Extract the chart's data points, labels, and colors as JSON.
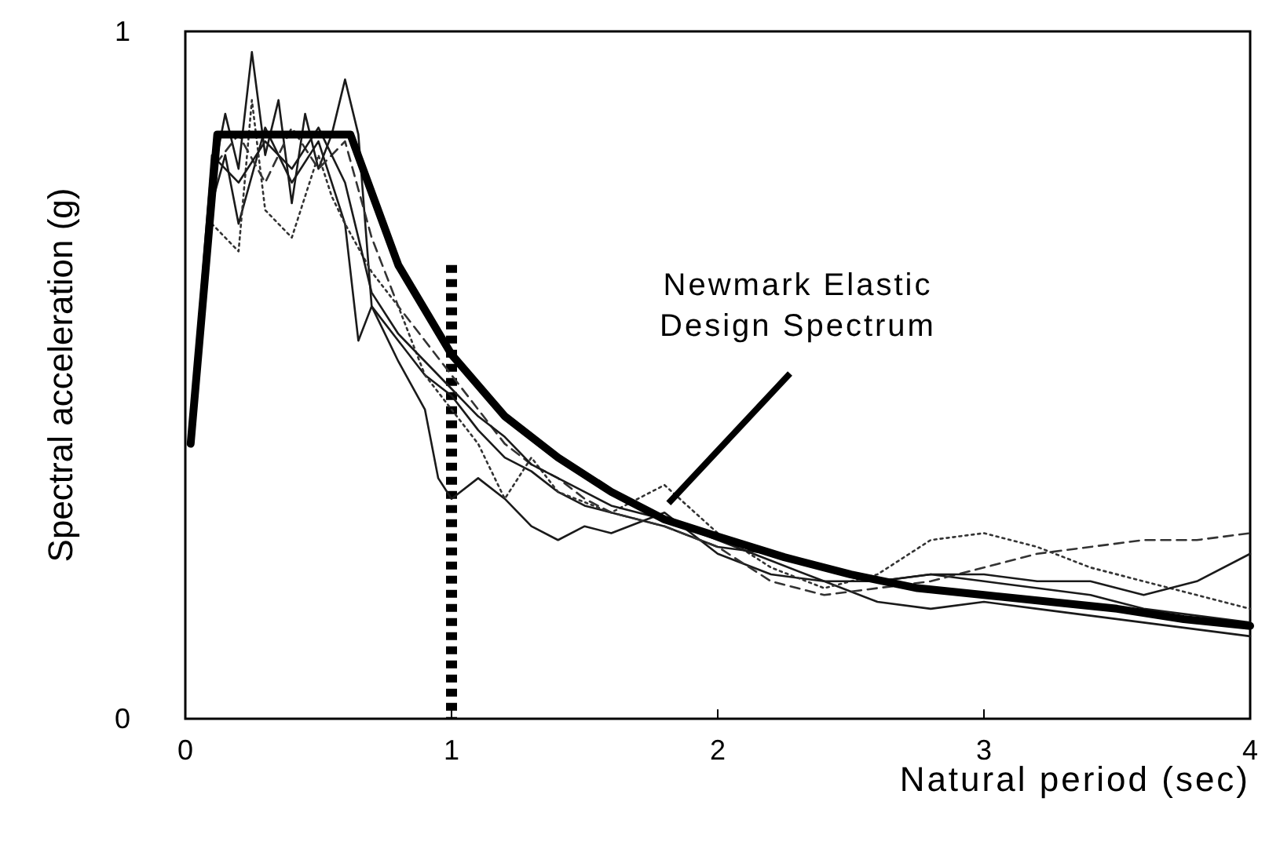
{
  "chart_data": {
    "type": "line",
    "xlabel": "Natural period (sec)",
    "ylabel": "Spectral acceleration (g)",
    "xlim": [
      0,
      4
    ],
    "ylim": [
      0,
      1
    ],
    "xticks": [
      0,
      1,
      2,
      3,
      4
    ],
    "yticks": [
      0,
      1
    ],
    "grid": false,
    "marker": "none",
    "x": [
      0.02,
      0.1,
      0.2,
      0.3,
      0.4,
      0.5,
      0.6,
      0.7,
      0.8,
      0.9,
      1.0,
      1.1,
      1.2,
      1.3,
      1.4,
      1.5,
      1.6,
      1.8,
      2.0,
      2.2,
      2.4,
      2.6,
      2.8,
      3.0,
      3.2,
      3.4,
      3.6,
      3.8,
      4.0
    ],
    "series": [
      {
        "color": "#1a1a1a",
        "line_style": "solid",
        "x": [
          0.02,
          0.06,
          0.1,
          0.15,
          0.2,
          0.25,
          0.3,
          0.35,
          0.4,
          0.45,
          0.5,
          0.55,
          0.6,
          0.65,
          0.7,
          0.8,
          0.9,
          1.0,
          1.1,
          1.2,
          1.3,
          1.4,
          1.5,
          1.6,
          1.8,
          2.0,
          2.2,
          2.4,
          2.6,
          2.8,
          3.0,
          3.2,
          3.4,
          3.6,
          3.8,
          4.0
        ],
        "values": [
          0.42,
          0.6,
          0.78,
          0.88,
          0.8,
          0.97,
          0.82,
          0.9,
          0.75,
          0.88,
          0.8,
          0.85,
          0.93,
          0.85,
          0.6,
          0.55,
          0.5,
          0.47,
          0.42,
          0.38,
          0.36,
          0.33,
          0.31,
          0.3,
          0.28,
          0.25,
          0.24,
          0.22,
          0.2,
          0.21,
          0.2,
          0.19,
          0.18,
          0.16,
          0.15,
          0.14
        ]
      },
      {
        "color": "#1a1a1a",
        "line_style": "solid",
        "x": [
          0.02,
          0.1,
          0.15,
          0.2,
          0.3,
          0.4,
          0.5,
          0.6,
          0.65,
          0.7,
          0.8,
          0.9,
          0.95,
          1.0,
          1.1,
          1.2,
          1.3,
          1.4,
          1.5,
          1.6,
          1.8,
          2.0,
          2.2,
          2.4,
          2.6,
          2.8,
          3.0,
          3.2,
          3.4,
          3.6,
          3.8,
          4.0
        ],
        "values": [
          0.4,
          0.75,
          0.82,
          0.72,
          0.86,
          0.78,
          0.84,
          0.72,
          0.55,
          0.6,
          0.52,
          0.45,
          0.35,
          0.32,
          0.35,
          0.32,
          0.28,
          0.26,
          0.28,
          0.27,
          0.3,
          0.24,
          0.21,
          0.2,
          0.17,
          0.16,
          0.17,
          0.16,
          0.15,
          0.14,
          0.13,
          0.12
        ]
      },
      {
        "color": "#333333",
        "line_style": "dotted",
        "x": [
          0.02,
          0.1,
          0.2,
          0.25,
          0.3,
          0.4,
          0.5,
          0.55,
          0.6,
          0.7,
          0.8,
          0.9,
          1.0,
          1.1,
          1.2,
          1.3,
          1.4,
          1.6,
          1.8,
          2.0,
          2.2,
          2.4,
          2.6,
          2.8,
          3.0,
          3.2,
          3.4,
          3.6,
          3.8,
          4.0
        ],
        "values": [
          0.42,
          0.72,
          0.68,
          0.9,
          0.74,
          0.7,
          0.82,
          0.76,
          0.72,
          0.65,
          0.6,
          0.5,
          0.45,
          0.4,
          0.32,
          0.38,
          0.33,
          0.3,
          0.34,
          0.27,
          0.22,
          0.19,
          0.21,
          0.26,
          0.27,
          0.25,
          0.22,
          0.2,
          0.18,
          0.16
        ]
      },
      {
        "color": "#333333",
        "line_style": "dashed",
        "values": [
          0.4,
          0.8,
          0.85,
          0.78,
          0.86,
          0.8,
          0.84,
          0.7,
          0.6,
          0.55,
          0.5,
          0.45,
          0.4,
          0.37,
          0.35,
          0.32,
          0.3,
          0.28,
          0.25,
          0.2,
          0.18,
          0.19,
          0.2,
          0.22,
          0.24,
          0.25,
          0.26,
          0.26,
          0.27
        ]
      },
      {
        "color": "#1a1a1a",
        "line_style": "solid",
        "values": [
          0.42,
          0.82,
          0.78,
          0.84,
          0.8,
          0.86,
          0.78,
          0.62,
          0.56,
          0.52,
          0.48,
          0.44,
          0.41,
          0.37,
          0.35,
          0.33,
          0.31,
          0.29,
          0.26,
          0.23,
          0.2,
          0.2,
          0.21,
          0.21,
          0.2,
          0.2,
          0.18,
          0.2,
          0.24
        ]
      },
      {
        "color": "#000000",
        "line_style": "solid",
        "x": [
          0.02,
          0.12,
          0.62,
          0.8,
          1.0,
          1.2,
          1.4,
          1.6,
          1.8,
          2.0,
          2.25,
          2.5,
          2.75,
          3.0,
          3.25,
          3.5,
          3.75,
          4.0
        ],
        "values": [
          0.4,
          0.85,
          0.85,
          0.66,
          0.53,
          0.44,
          0.38,
          0.33,
          0.29,
          0.265,
          0.235,
          0.21,
          0.19,
          0.18,
          0.17,
          0.16,
          0.145,
          0.135
        ]
      }
    ],
    "ref_lines": [
      {
        "axis": "x",
        "value": 1,
        "line_style": "dotted",
        "color": "#000000"
      }
    ],
    "annotations": [
      {
        "text": "Newmark Elastic Design Spectrum",
        "x": 1.78,
        "y": 0.3
      }
    ]
  }
}
